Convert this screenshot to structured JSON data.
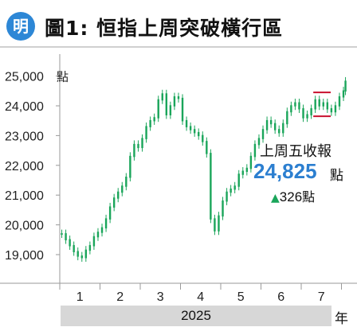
{
  "header": {
    "logo_text": "明",
    "title": "圖1: 恒指上周突破橫行區"
  },
  "callout": {
    "label": "上周五收報",
    "value": "24,825",
    "value_unit": "點",
    "change_icon": "triangle-up-icon",
    "change_value": "326",
    "change_unit": "點"
  },
  "colors": {
    "logo": "#2d87d6",
    "candle": "#1aa55a",
    "range_lines": "#c8102e",
    "highlight_value": "#2c7fd0"
  },
  "chart_data": {
    "type": "candlestick",
    "title": "恒指上周突破橫行區",
    "y_unit": "點",
    "ylim": [
      18300,
      25500
    ],
    "y_ticks": [
      19000,
      20000,
      21000,
      22000,
      23000,
      24000,
      25000
    ],
    "y_tick_labels": [
      "19,000",
      "20,000",
      "21,000",
      "22,000",
      "23,000",
      "24,000",
      "25,000"
    ],
    "x_tick_labels": [
      "1",
      "2",
      "3",
      "4",
      "5",
      "6",
      "7"
    ],
    "x_unit": "年",
    "year_label": "2025",
    "grid": false,
    "range_lines": [
      24450,
      23650
    ],
    "range_lines_start_month": 6.3,
    "series": [
      {
        "m": 0.05,
        "v": 19700
      },
      {
        "m": 0.15,
        "v": 19500
      },
      {
        "m": 0.25,
        "v": 19300
      },
      {
        "m": 0.35,
        "v": 19100
      },
      {
        "m": 0.45,
        "v": 18950
      },
      {
        "m": 0.55,
        "v": 18900
      },
      {
        "m": 0.65,
        "v": 19150
      },
      {
        "m": 0.75,
        "v": 19300
      },
      {
        "m": 0.85,
        "v": 19600
      },
      {
        "m": 0.95,
        "v": 19750
      },
      {
        "m": 1.05,
        "v": 19900
      },
      {
        "m": 1.15,
        "v": 20200
      },
      {
        "m": 1.25,
        "v": 20600
      },
      {
        "m": 1.35,
        "v": 20900
      },
      {
        "m": 1.45,
        "v": 21100
      },
      {
        "m": 1.55,
        "v": 21300
      },
      {
        "m": 1.65,
        "v": 21600
      },
      {
        "m": 1.75,
        "v": 22300
      },
      {
        "m": 1.85,
        "v": 22700
      },
      {
        "m": 1.95,
        "v": 22600
      },
      {
        "m": 2.05,
        "v": 22900
      },
      {
        "m": 2.15,
        "v": 23300
      },
      {
        "m": 2.25,
        "v": 23500
      },
      {
        "m": 2.35,
        "v": 23600
      },
      {
        "m": 2.45,
        "v": 24200
      },
      {
        "m": 2.55,
        "v": 24400
      },
      {
        "m": 2.65,
        "v": 23700
      },
      {
        "m": 2.75,
        "v": 24000
      },
      {
        "m": 2.85,
        "v": 24300
      },
      {
        "m": 2.95,
        "v": 24250
      },
      {
        "m": 3.05,
        "v": 23500
      },
      {
        "m": 3.15,
        "v": 23300
      },
      {
        "m": 3.25,
        "v": 23200
      },
      {
        "m": 3.35,
        "v": 23100
      },
      {
        "m": 3.45,
        "v": 23000
      },
      {
        "m": 3.55,
        "v": 22800
      },
      {
        "m": 3.65,
        "v": 22400
      },
      {
        "m": 3.75,
        "v": 20200
      },
      {
        "m": 3.85,
        "v": 19800
      },
      {
        "m": 3.95,
        "v": 20300
      },
      {
        "m": 4.05,
        "v": 20800
      },
      {
        "m": 4.15,
        "v": 21100
      },
      {
        "m": 4.25,
        "v": 21200
      },
      {
        "m": 4.35,
        "v": 21300
      },
      {
        "m": 4.45,
        "v": 21700
      },
      {
        "m": 4.55,
        "v": 21800
      },
      {
        "m": 4.65,
        "v": 21900
      },
      {
        "m": 4.75,
        "v": 22300
      },
      {
        "m": 4.85,
        "v": 22700
      },
      {
        "m": 4.95,
        "v": 22900
      },
      {
        "m": 5.05,
        "v": 23200
      },
      {
        "m": 5.15,
        "v": 23500
      },
      {
        "m": 5.25,
        "v": 23400
      },
      {
        "m": 5.35,
        "v": 23200
      },
      {
        "m": 5.45,
        "v": 23100
      },
      {
        "m": 5.55,
        "v": 23400
      },
      {
        "m": 5.65,
        "v": 23800
      },
      {
        "m": 5.75,
        "v": 24000
      },
      {
        "m": 5.85,
        "v": 24100
      },
      {
        "m": 5.95,
        "v": 23900
      },
      {
        "m": 6.05,
        "v": 23600
      },
      {
        "m": 6.15,
        "v": 23700
      },
      {
        "m": 6.25,
        "v": 23900
      },
      {
        "m": 6.35,
        "v": 24200
      },
      {
        "m": 6.45,
        "v": 24000
      },
      {
        "m": 6.55,
        "v": 24100
      },
      {
        "m": 6.65,
        "v": 23900
      },
      {
        "m": 6.75,
        "v": 23800
      },
      {
        "m": 6.85,
        "v": 24000
      },
      {
        "m": 6.95,
        "v": 24300
      },
      {
        "m": 7.05,
        "v": 24500
      },
      {
        "m": 7.1,
        "v": 24825
      }
    ]
  }
}
